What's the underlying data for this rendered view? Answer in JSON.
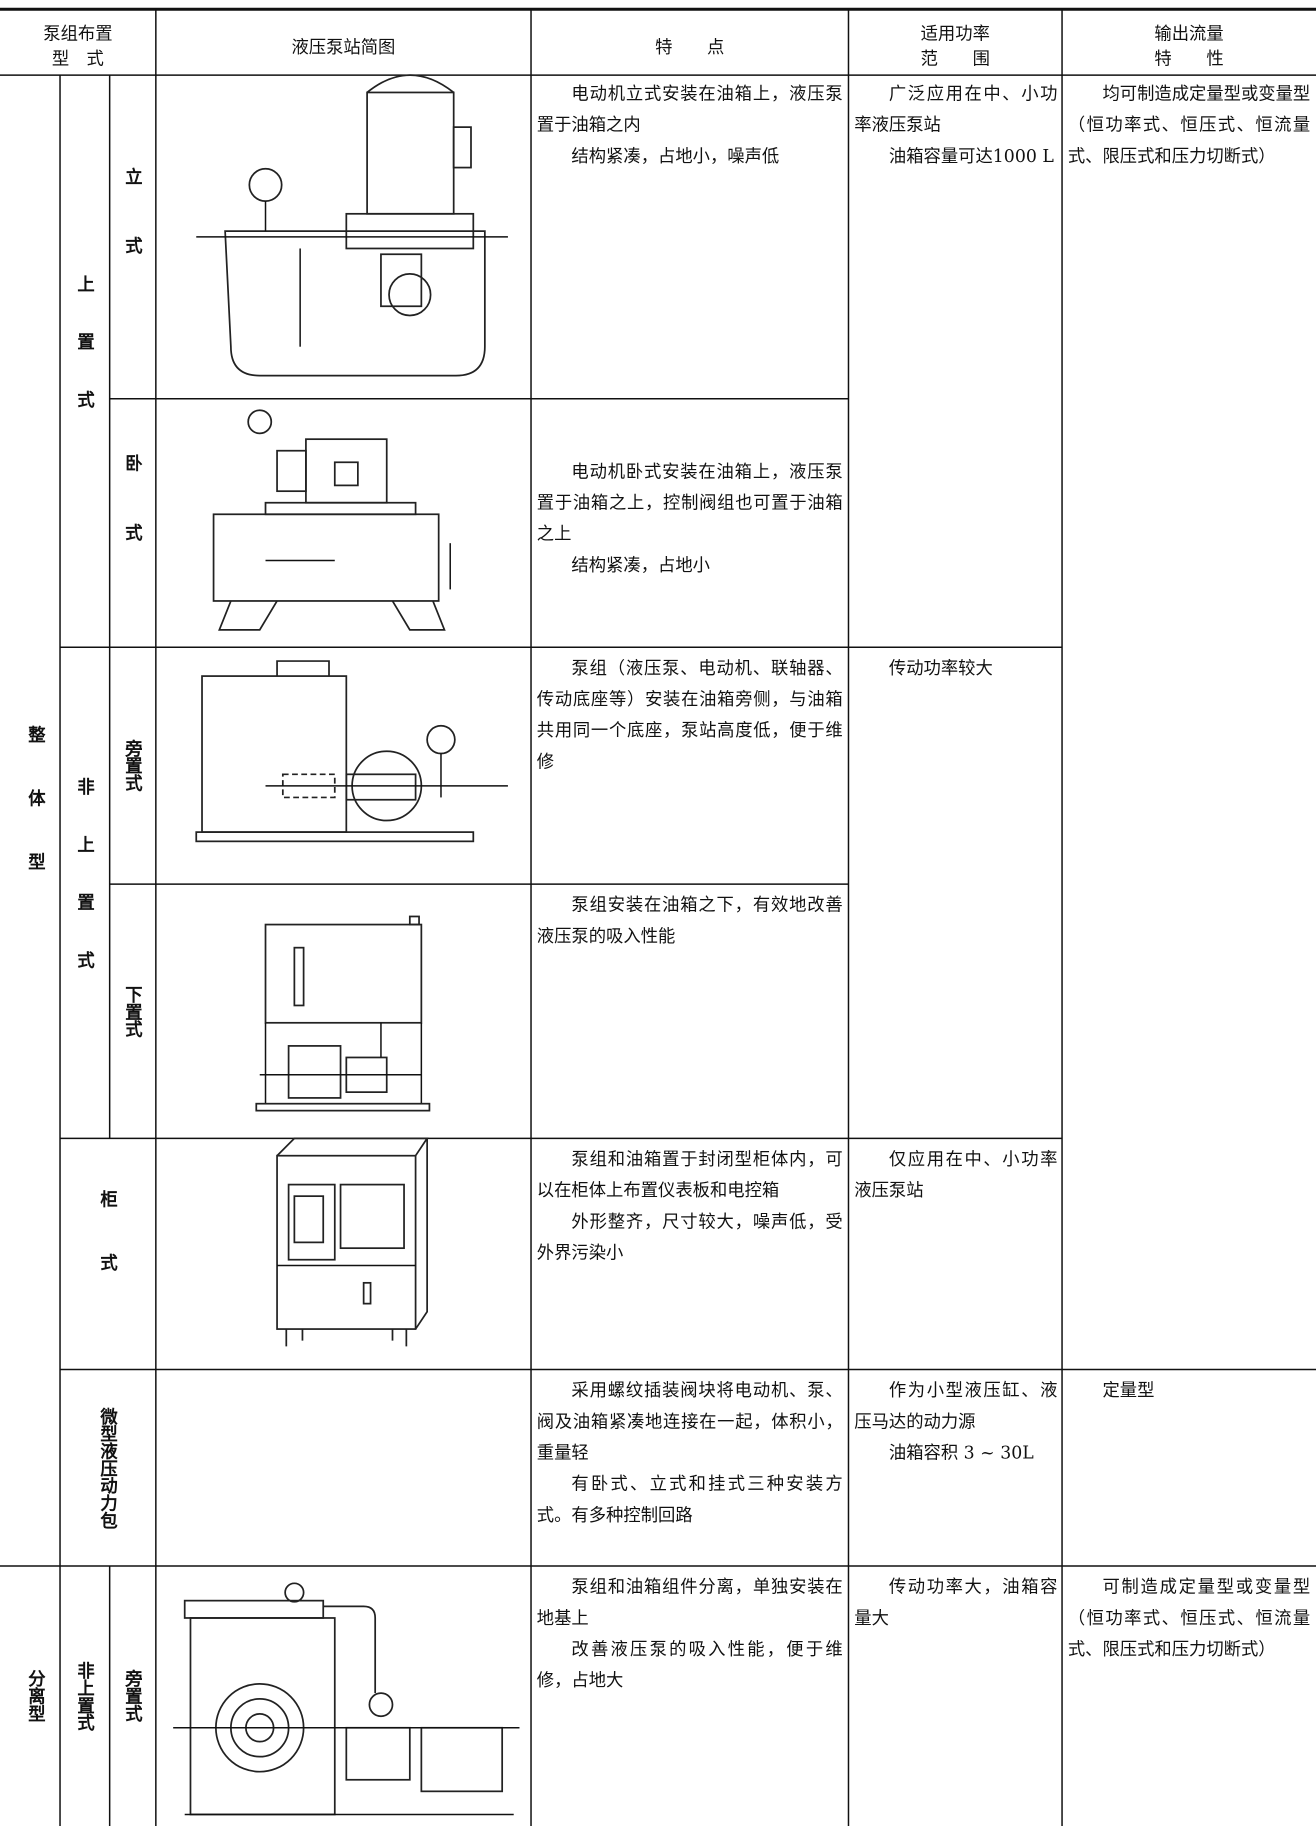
{
  "header": {
    "arrangement": [
      "泵组布置",
      "型　式"
    ],
    "diagram": "液压泵站简图",
    "features": "特　　点",
    "power": [
      "适用功率",
      "范　　围"
    ],
    "flow": [
      "输出流量",
      "特　　性"
    ]
  },
  "groups": {
    "integral": "整体型",
    "separate": "分离型",
    "top": "上置式",
    "non_top": "非上置式",
    "non_top_separate": "非上置式"
  },
  "rows": [
    {
      "type": "立式",
      "features": [
        "电动机立式安装在油箱上，液压泵置于油箱之内",
        "结构紧凑，占地小，噪声低"
      ]
    },
    {
      "type": "卧式",
      "features": [
        "电动机卧式安装在油箱上，液压泵置于油箱之上，控制阀组也可置于油箱之上",
        "结构紧凑，占地小"
      ]
    },
    {
      "type": "旁置式",
      "features": [
        "泵组（液压泵、电动机、联轴器、传动底座等）安装在油箱旁侧，与油箱共用同一个底座，泵站高度低，便于维修"
      ]
    },
    {
      "type": "下置式",
      "features": [
        "泵组安装在油箱之下，有效地改善液压泵的吸入性能"
      ]
    },
    {
      "type": "柜式",
      "features": [
        "泵组和油箱置于封闭型柜体内，可以在柜体上布置仪表板和电控箱",
        "外形整齐，尺寸较大，噪声低，受外界污染小"
      ]
    },
    {
      "type": "微型液压动力包",
      "features": [
        "采用螺纹插装阀块将电动机、泵、阀及油箱紧凑地连接在一起，体积小，重量轻",
        "有卧式、立式和挂式三种安装方式。有多种控制回路"
      ]
    },
    {
      "type": "旁置式",
      "features": [
        "泵组和油箱组件分离，单独安装在地基上",
        "改善液压泵的吸入性能，便于维修，占地大"
      ]
    }
  ],
  "power": [
    [
      "广泛应用在中、小功率液压泵站",
      "油箱容量可达1000 L"
    ],
    [
      "传动功率较大"
    ],
    [
      "仅应用在中、小功率液压泵站"
    ],
    [
      "作为小型液压缸、液压马达的动力源",
      "油箱容积 3 ~ 30L"
    ],
    [
      "传动功率大，油箱容量大"
    ]
  ],
  "flow": [
    [
      "均可制造成定量型或变量型（恒功率式、恒压式、恒流量式、限压式和压力切断式）"
    ],
    [
      "定量型"
    ],
    [
      "可制造成定量型或变量型（恒功率式、恒压式、恒流量式、限压式和压力切断式）"
    ]
  ]
}
